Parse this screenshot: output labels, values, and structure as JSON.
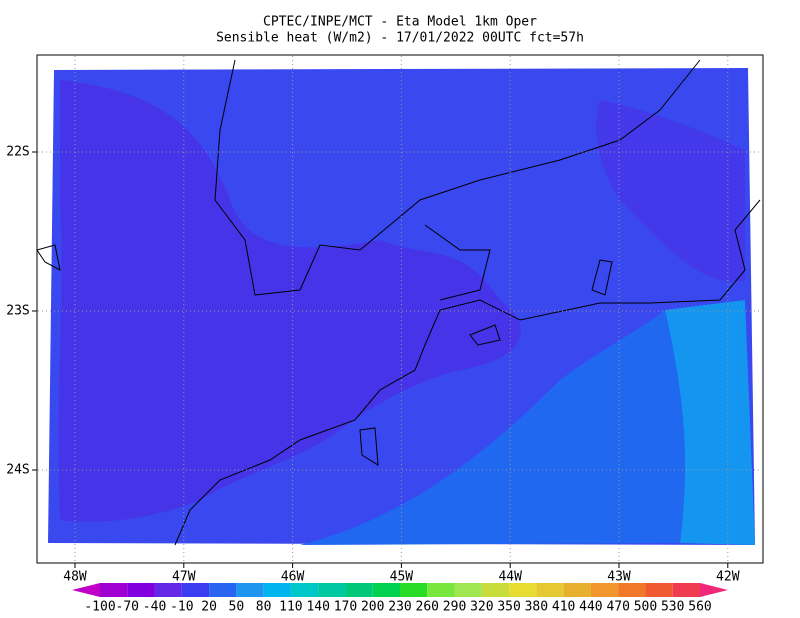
{
  "header": {
    "line1": "CPTEC/INPE/MCT -  Eta Model 1km Oper",
    "line2": "Sensible heat (W/m2) - 17/01/2022 00UTC fct=57h"
  },
  "lon_labels": [
    "48W",
    "47W",
    "46W",
    "45W",
    "44W",
    "43W",
    "42W"
  ],
  "lat_labels": [
    "22S",
    "23S",
    "24S"
  ],
  "colorbar": {
    "labels": [
      "-100",
      "-70",
      "-40",
      "-10",
      "20",
      "50",
      "80",
      "110",
      "140",
      "170",
      "200",
      "230",
      "260",
      "290",
      "320",
      "350",
      "380",
      "410",
      "440",
      "470",
      "500",
      "530",
      "560"
    ],
    "colors": [
      "#c000c8",
      "#a000d2",
      "#8200e0",
      "#6428e6",
      "#3c3cf0",
      "#2864f0",
      "#1e96f0",
      "#00b4f0",
      "#00c8c8",
      "#00c8a0",
      "#00c878",
      "#00d250",
      "#28dc28",
      "#78e63c",
      "#a0e650",
      "#c8dc3c",
      "#e6dc32",
      "#e6c832",
      "#e6af2d",
      "#f0962d",
      "#f07828",
      "#f05a32",
      "#f03c50",
      "#f0287a"
    ]
  }
}
